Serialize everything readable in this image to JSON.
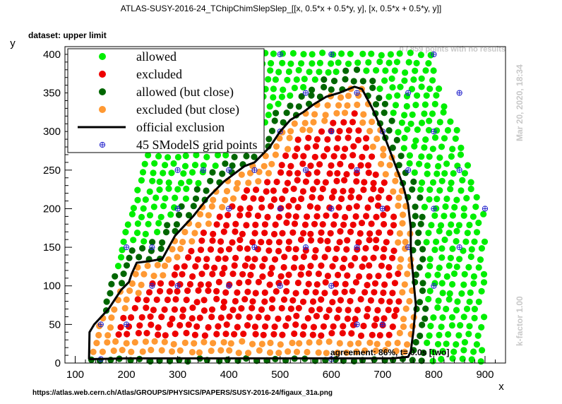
{
  "page": {
    "title": "ATLAS-SUSY-2016-24_TChipChimSlepSlep_[[x, 0.5*x + 0.5*y, y], [x, 0.5*x + 0.5*y, y]]",
    "dataset_label": "dataset: upper limit",
    "no_results_label": "0 / 859 points with no results",
    "timestamp": "Mar 20, 2020, 18:34",
    "kfactor": "k-factor 1.00",
    "agreement": "agreement: 86%, t= 0.0s [two]",
    "source_url": "https://atlas.web.cern.ch/Atlas/GROUPS/PHYSICS/PAPERS/SUSY-2016-24/figaux_31a.png"
  },
  "colors": {
    "allowed": "#00ee00",
    "excluded": "#ee0000",
    "allowed_close": "#006600",
    "excluded_close": "#ff9933",
    "official": "#000000",
    "grid_marker": "#2222cc",
    "faint_text": "#c8c8c8"
  },
  "chart_data": {
    "type": "scatter",
    "xlabel": "x",
    "ylabel": "y",
    "xlim": [
      80,
      940
    ],
    "ylim": [
      0,
      410
    ],
    "xticks": [
      100,
      200,
      300,
      400,
      500,
      600,
      700,
      800,
      900
    ],
    "yticks": [
      0,
      50,
      100,
      150,
      200,
      250,
      300,
      350,
      400
    ],
    "legend_position": "top-left",
    "legend": [
      {
        "key": "allowed",
        "label": "allowed",
        "kind": "dot"
      },
      {
        "key": "excluded",
        "label": "excluded",
        "kind": "dot"
      },
      {
        "key": "allowed_close",
        "label": "allowed (but close)",
        "kind": "dot"
      },
      {
        "key": "excluded_close",
        "label": "excluded (but close)",
        "kind": "dot"
      },
      {
        "key": "official",
        "label": "official exclusion",
        "kind": "line"
      },
      {
        "key": "grid",
        "label": "45 SModelS grid points",
        "kind": "cross"
      }
    ],
    "official_exclusion": [
      [
        127,
        5
      ],
      [
        128,
        40
      ],
      [
        137,
        50
      ],
      [
        165,
        70
      ],
      [
        190,
        95
      ],
      [
        205,
        105
      ],
      [
        210,
        115
      ],
      [
        220,
        130
      ],
      [
        245,
        132
      ],
      [
        270,
        135
      ],
      [
        295,
        165
      ],
      [
        330,
        190
      ],
      [
        360,
        215
      ],
      [
        390,
        235
      ],
      [
        410,
        245
      ],
      [
        430,
        255
      ],
      [
        450,
        260
      ],
      [
        480,
        280
      ],
      [
        500,
        300
      ],
      [
        520,
        315
      ],
      [
        545,
        325
      ],
      [
        565,
        335
      ],
      [
        590,
        345
      ],
      [
        615,
        350
      ],
      [
        645,
        358
      ],
      [
        660,
        355
      ],
      [
        680,
        330
      ],
      [
        700,
        300
      ],
      [
        720,
        265
      ],
      [
        740,
        230
      ],
      [
        750,
        205
      ],
      [
        755,
        175
      ],
      [
        755,
        145
      ],
      [
        760,
        110
      ],
      [
        765,
        75
      ],
      [
        760,
        40
      ],
      [
        755,
        15
      ],
      [
        750,
        8
      ],
      [
        720,
        6
      ],
      [
        600,
        6
      ],
      [
        400,
        6
      ],
      [
        200,
        6
      ],
      [
        127,
        5
      ]
    ],
    "grid_points": [
      [
        150,
        5
      ],
      [
        150,
        50
      ],
      [
        200,
        50
      ],
      [
        200,
        150
      ],
      [
        250,
        100
      ],
      [
        250,
        150
      ],
      [
        300,
        100
      ],
      [
        300,
        200
      ],
      [
        300,
        250
      ],
      [
        350,
        250
      ],
      [
        400,
        200
      ],
      [
        400,
        100
      ],
      [
        400,
        250
      ],
      [
        450,
        250
      ],
      [
        450,
        150
      ],
      [
        500,
        100
      ],
      [
        500,
        200
      ],
      [
        500,
        300
      ],
      [
        500,
        400
      ],
      [
        550,
        350
      ],
      [
        550,
        250
      ],
      [
        550,
        150
      ],
      [
        600,
        100
      ],
      [
        600,
        200
      ],
      [
        600,
        300
      ],
      [
        600,
        400
      ],
      [
        650,
        150
      ],
      [
        650,
        250
      ],
      [
        650,
        350
      ],
      [
        700,
        50
      ],
      [
        700,
        200
      ],
      [
        700,
        300
      ],
      [
        750,
        150
      ],
      [
        750,
        250
      ],
      [
        750,
        350
      ],
      [
        800,
        100
      ],
      [
        800,
        200
      ],
      [
        800,
        300
      ],
      [
        800,
        400
      ],
      [
        850,
        150
      ],
      [
        850,
        250
      ],
      [
        850,
        350
      ],
      [
        900,
        200
      ],
      [
        650,
        50
      ],
      [
        600,
        5
      ]
    ]
  }
}
